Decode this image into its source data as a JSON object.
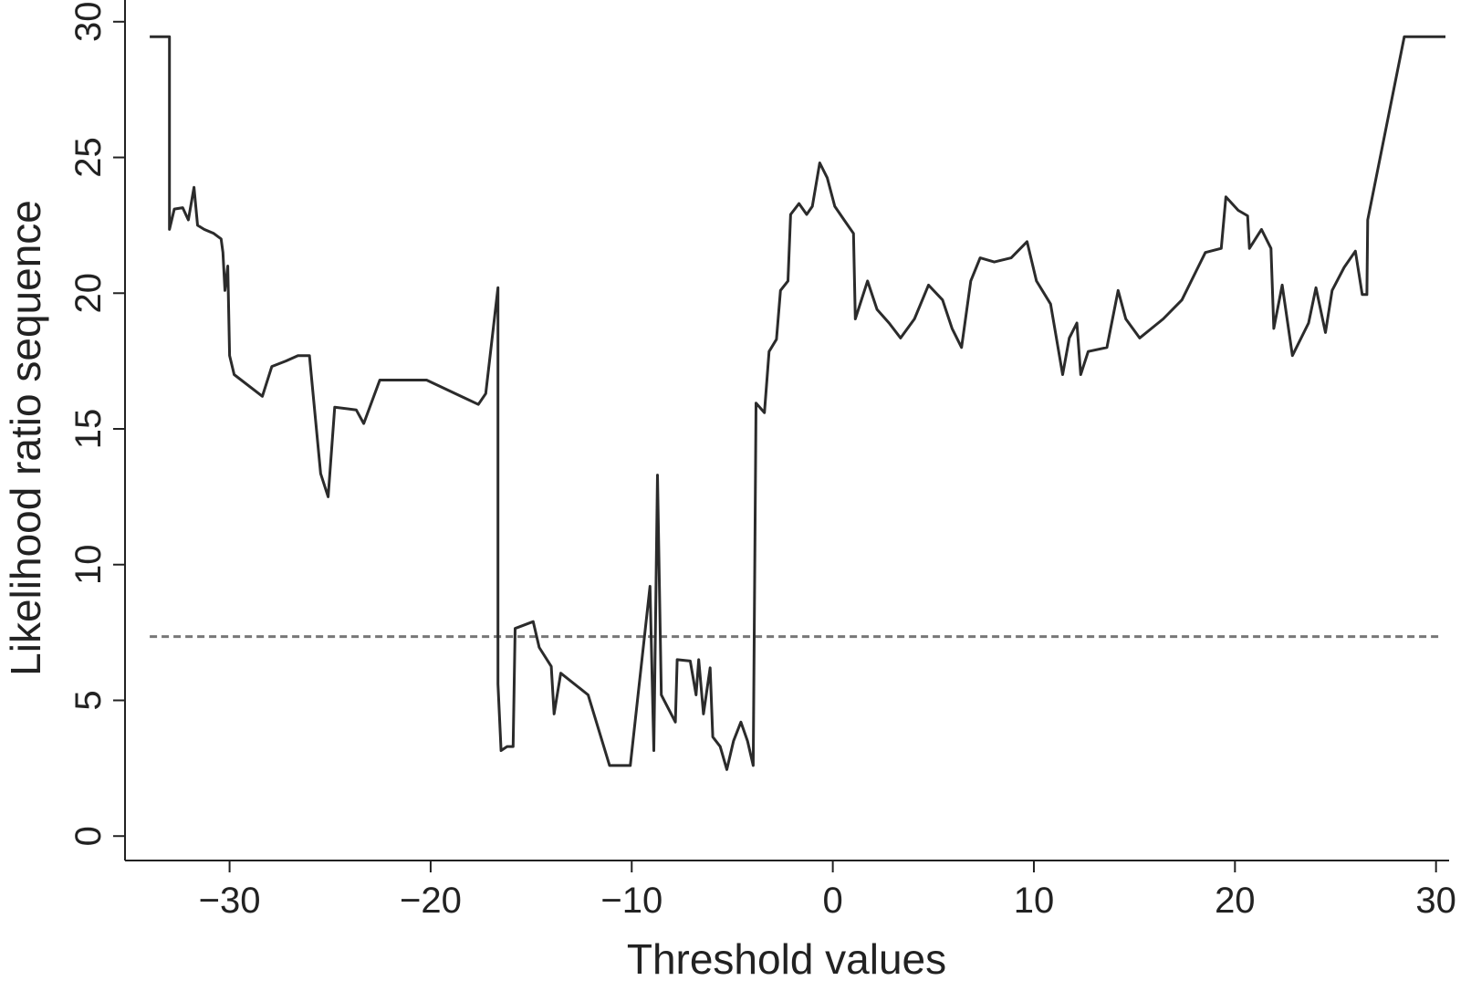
{
  "chart_data": {
    "type": "line",
    "x_label": "Threshold values",
    "y_label": "Likelihood ratio sequence",
    "xlim": [
      -35.2,
      30.65
    ],
    "ylim": [
      -0.9,
      30.8
    ],
    "xticks": [
      {
        "value": -30,
        "label": "−30"
      },
      {
        "value": -20,
        "label": "−20"
      },
      {
        "value": -10,
        "label": "−10"
      },
      0,
      10,
      20,
      30
    ],
    "yticks": [
      0,
      5,
      10,
      15,
      20,
      25,
      30
    ],
    "reference_line": 7.35,
    "series": [
      {
        "color": "#2b2b2b",
        "x": [
          -33.97,
          -32.99,
          -32.99,
          -32.75,
          -32.33,
          -32.05,
          -31.77,
          -31.59,
          -31.26,
          -30.79,
          -30.42,
          -30.33,
          -30.23,
          -30.09,
          -30.0,
          -29.77,
          -28.37,
          -27.9,
          -27.2,
          -26.6,
          -26.03,
          -25.47,
          -25.1,
          -24.77,
          -23.7,
          -23.33,
          -22.53,
          -20.2,
          -17.63,
          -17.26,
          -16.65,
          -16.65,
          -16.5,
          -16.2,
          -15.9,
          -15.8,
          -14.9,
          -14.6,
          -14.0,
          -13.86,
          -13.53,
          -12.17,
          -11.1,
          -10.07,
          -9.09,
          -8.9,
          -8.72,
          -8.53,
          -7.83,
          -7.74,
          -7.09,
          -6.8,
          -6.67,
          -6.43,
          -6.1,
          -5.97,
          -5.6,
          -5.27,
          -4.94,
          -4.57,
          -4.24,
          -3.96,
          -3.82,
          -3.4,
          -3.17,
          -2.8,
          -2.6,
          -2.23,
          -2.1,
          -1.68,
          -1.3,
          -1.02,
          -0.65,
          -0.28,
          0.1,
          0.56,
          1.03,
          1.12,
          1.73,
          2.2,
          2.8,
          3.37,
          4.06,
          4.76,
          5.46,
          5.93,
          6.4,
          6.86,
          7.33,
          8.03,
          8.87,
          9.66,
          10.13,
          10.83,
          11.43,
          11.76,
          12.14,
          12.33,
          12.7,
          13.63,
          14.19,
          14.57,
          15.26,
          16.43,
          17.36,
          18.06,
          18.53,
          19.32,
          19.55,
          20.16,
          20.63,
          20.72,
          21.32,
          21.79,
          21.93,
          22.35,
          22.86,
          23.66,
          24.03,
          24.5,
          24.83,
          25.43,
          25.99,
          26.33,
          26.56,
          26.6,
          28.42,
          30.47
        ],
        "values": [
          29.45,
          29.45,
          22.35,
          23.1,
          23.15,
          22.7,
          23.9,
          22.5,
          22.35,
          22.2,
          22.0,
          21.5,
          20.1,
          21.0,
          17.7,
          17.0,
          16.2,
          17.3,
          17.5,
          17.7,
          17.7,
          13.35,
          12.5,
          15.8,
          15.7,
          15.2,
          16.8,
          16.8,
          15.9,
          16.3,
          20.2,
          5.6,
          3.15,
          3.3,
          3.3,
          7.65,
          7.9,
          6.95,
          6.25,
          4.5,
          6.0,
          5.2,
          2.6,
          2.6,
          9.2,
          3.15,
          13.3,
          5.2,
          4.2,
          6.5,
          6.45,
          5.2,
          6.5,
          4.5,
          6.2,
          3.65,
          3.3,
          2.45,
          3.5,
          4.2,
          3.5,
          2.6,
          15.95,
          15.6,
          17.85,
          18.3,
          20.1,
          20.45,
          22.9,
          23.3,
          22.9,
          23.2,
          24.8,
          24.25,
          23.2,
          22.7,
          22.2,
          19.05,
          20.45,
          19.4,
          18.9,
          18.35,
          19.05,
          20.3,
          19.75,
          18.7,
          18.0,
          20.45,
          21.3,
          21.15,
          21.3,
          21.9,
          20.45,
          19.6,
          17.0,
          18.35,
          18.9,
          17.0,
          17.85,
          18.0,
          20.1,
          19.05,
          18.35,
          19.05,
          19.75,
          20.8,
          21.5,
          21.65,
          23.55,
          23.05,
          22.85,
          21.65,
          22.35,
          21.65,
          18.7,
          20.3,
          17.7,
          18.9,
          20.2,
          18.55,
          20.1,
          20.95,
          21.55,
          19.95,
          19.95,
          22.7,
          29.45,
          29.45
        ]
      }
    ]
  }
}
